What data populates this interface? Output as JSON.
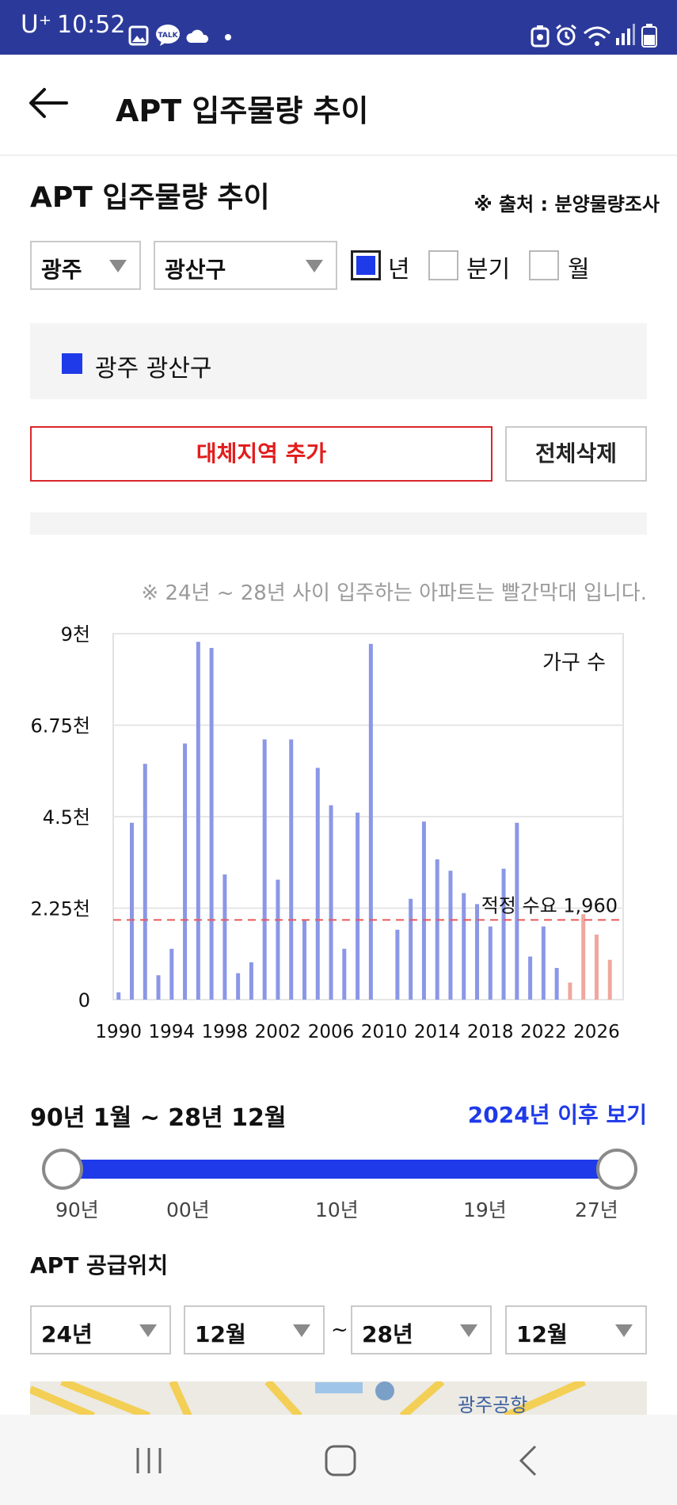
{
  "status_bar": {
    "time": "10:52",
    "carrier": "U⁺",
    "notification_icons": [
      "gallery-icon",
      "talk-icon",
      "cloud-icon",
      "dot-icon"
    ],
    "right_icons": [
      "battery-saver-icon",
      "alarm-icon",
      "wifi-icon",
      "signal-icon",
      "battery-icon"
    ],
    "talk_badge": "TALK"
  },
  "header": {
    "title": "APT 입주물량 추이"
  },
  "section": {
    "title": "APT 입주물량 추이",
    "source": "※ 출처 : 분양물량조사"
  },
  "filters": {
    "region": "광주",
    "district": "광산구",
    "periods": [
      {
        "label": "년",
        "checked": true
      },
      {
        "label": "분기",
        "checked": false
      },
      {
        "label": "월",
        "checked": false
      }
    ]
  },
  "legend": {
    "items": [
      {
        "label": "광주 광산구",
        "color": "#1f3ae8"
      }
    ]
  },
  "buttons": {
    "add_region": "대체지역 추가",
    "delete_all": "전체삭제"
  },
  "note": "※ 24년 ~ 28년 사이 입주하는 아파트는 빨간막대 입니다.",
  "chart_data": {
    "type": "bar",
    "unit_label": "가구 수",
    "x": [
      1990,
      1991,
      1992,
      1993,
      1994,
      1995,
      1996,
      1997,
      1998,
      1999,
      2000,
      2001,
      2002,
      2003,
      2004,
      2005,
      2006,
      2007,
      2008,
      2009,
      2010,
      2011,
      2012,
      2013,
      2014,
      2015,
      2016,
      2017,
      2018,
      2019,
      2020,
      2021,
      2022,
      2023,
      2024,
      2025,
      2026,
      2027
    ],
    "values": [
      180,
      4350,
      5800,
      600,
      1250,
      6300,
      8800,
      8650,
      3080,
      650,
      920,
      6400,
      2950,
      6400,
      1960,
      5700,
      4780,
      1250,
      4600,
      8750,
      0,
      1720,
      2480,
      4380,
      3450,
      3170,
      2620,
      2350,
      1800,
      3220,
      4350,
      1060,
      1800,
      780,
      420,
      2100,
      1600,
      980
    ],
    "highlight_from": 2024,
    "bar_color": "#8b97e6",
    "highlight_color": "#f0a79e",
    "ylim": [
      0,
      9000
    ],
    "yticks": [
      0,
      2250,
      4500,
      6750,
      9000
    ],
    "ytick_labels": [
      "0",
      "2.25천",
      "4.5천",
      "6.75천",
      "9천"
    ],
    "xtick_labels": [
      "1990",
      "1994",
      "1998",
      "2002",
      "2006",
      "2010",
      "2014",
      "2018",
      "2022",
      "2026"
    ],
    "reference_line": {
      "value": 1960,
      "label": "적정 수요 1,960",
      "color": "#e85a5a"
    },
    "grid": true
  },
  "range": {
    "title": "90년 1월 ~ 28년 12월",
    "view_after": "2024년 이후 보기",
    "tick_labels": [
      "90년",
      "00년",
      "10년",
      "19년",
      "27년"
    ]
  },
  "supply": {
    "title": "APT 공급위치",
    "from_year": "24년",
    "from_month": "12월",
    "separator": "~",
    "to_year": "28년",
    "to_month": "12월"
  },
  "map": {
    "labels": [
      "광주공항"
    ]
  },
  "nav": {
    "buttons": [
      "recents-icon",
      "home-icon",
      "back-icon"
    ]
  }
}
